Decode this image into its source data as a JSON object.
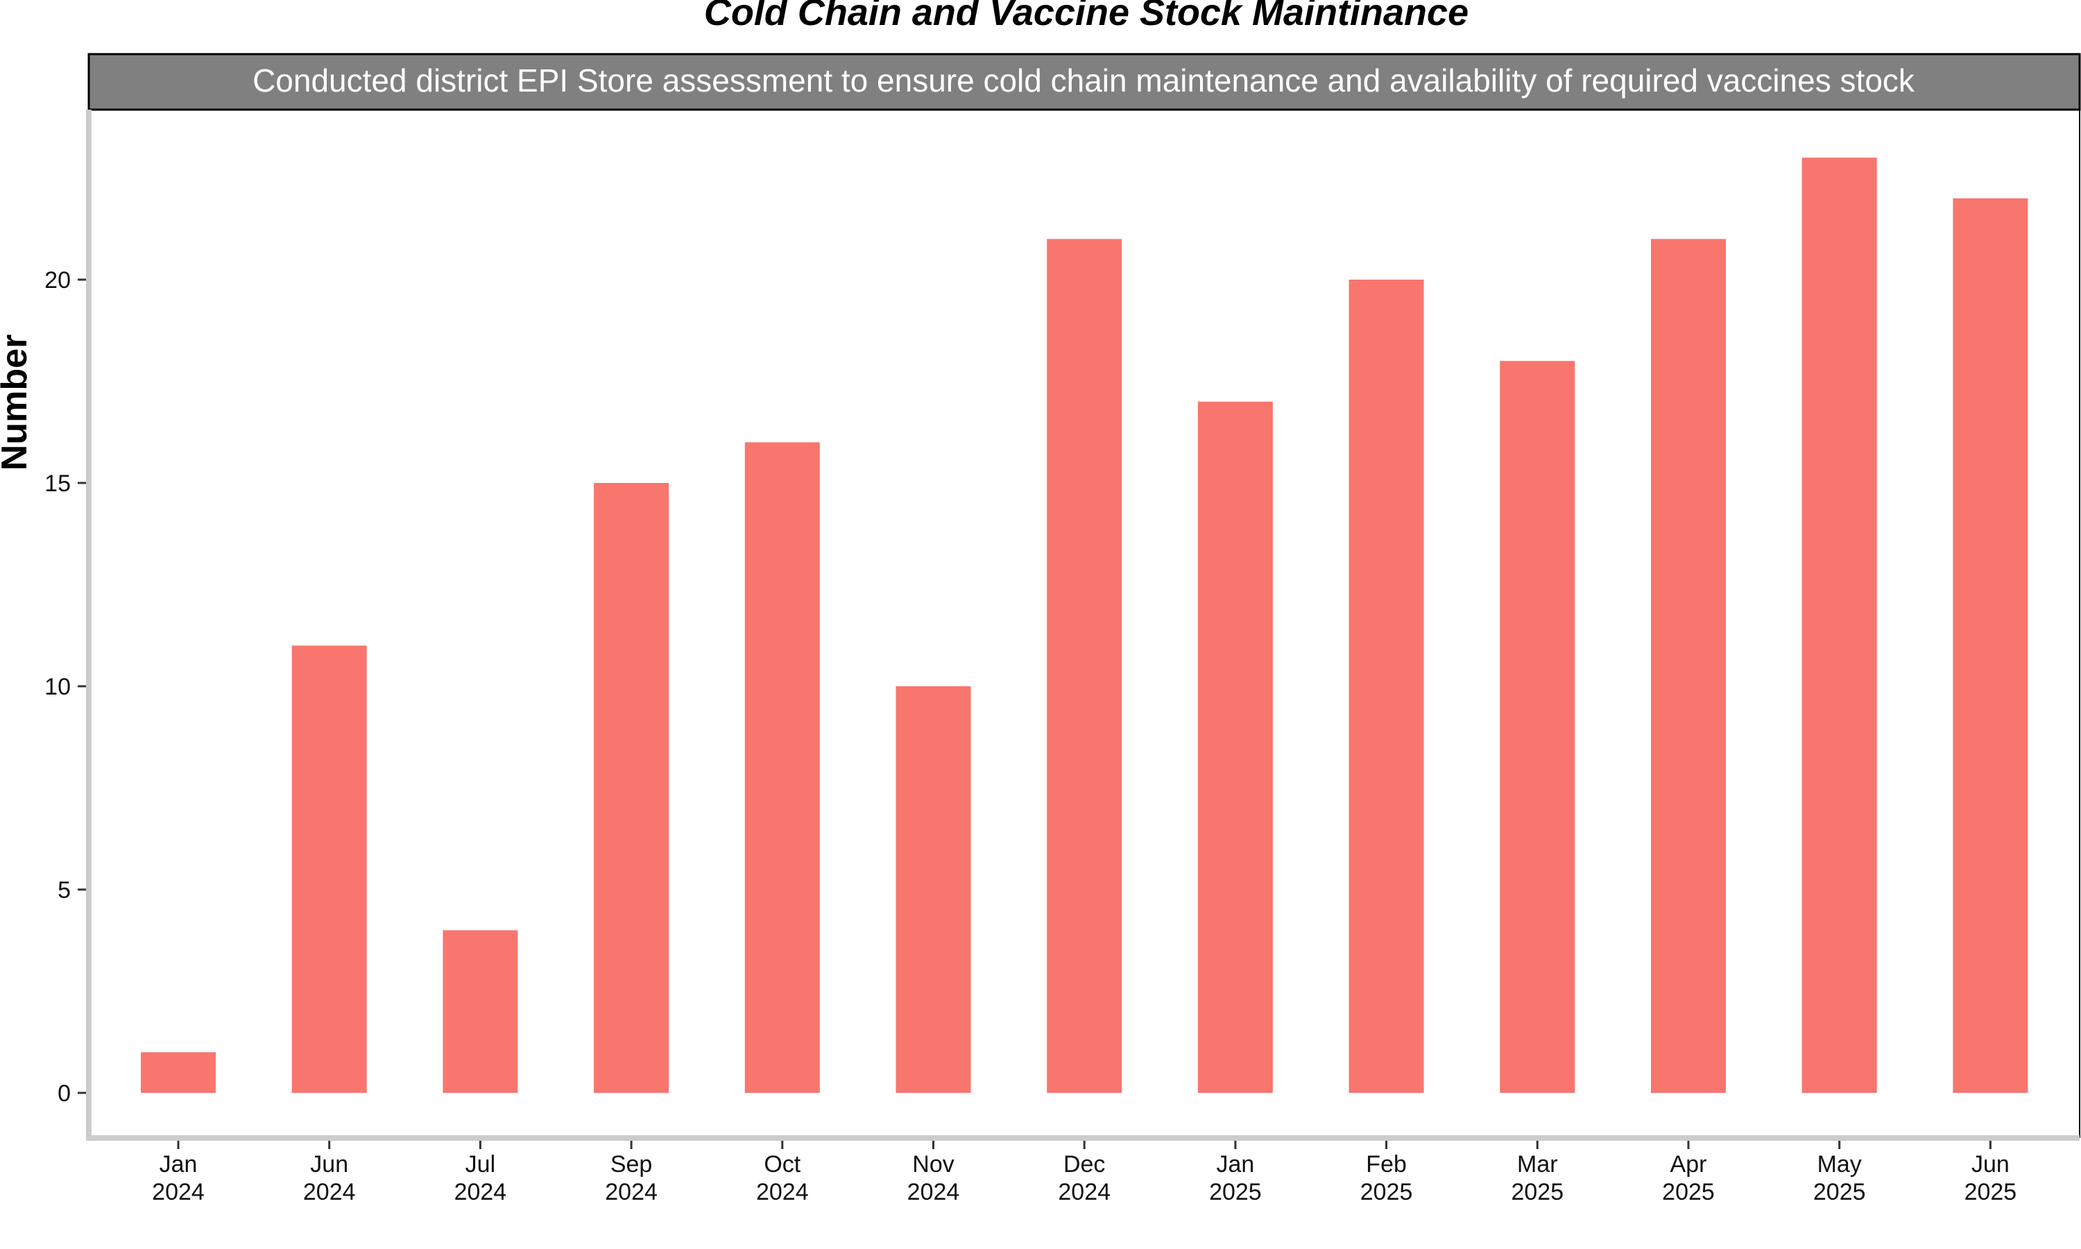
{
  "chart_data": {
    "type": "bar",
    "title": "Cold Chain and Vaccine Stock Maintinance",
    "facet_label": "Conducted district EPI Store assessment to ensure cold chain maintenance and availability of required vaccines stock",
    "ylabel": "Number",
    "xlabel": "",
    "categories": [
      [
        "Jan",
        "2024"
      ],
      [
        "Jun",
        "2024"
      ],
      [
        "Jul",
        "2024"
      ],
      [
        "Sep",
        "2024"
      ],
      [
        "Oct",
        "2024"
      ],
      [
        "Nov",
        "2024"
      ],
      [
        "Dec",
        "2024"
      ],
      [
        "Jan",
        "2025"
      ],
      [
        "Feb",
        "2025"
      ],
      [
        "Mar",
        "2025"
      ],
      [
        "Apr",
        "2025"
      ],
      [
        "May",
        "2025"
      ],
      [
        "Jun",
        "2025"
      ]
    ],
    "values": [
      1,
      11,
      4,
      15,
      16,
      10,
      21,
      17,
      20,
      18,
      21,
      23,
      22
    ],
    "y_ticks": [
      0,
      5,
      10,
      15,
      20
    ],
    "ylim": [
      0,
      23
    ],
    "grid": false,
    "legend": "none",
    "colors": {
      "bar": "#F8766D",
      "strip_fill": "#808080",
      "strip_text": "#ffffff",
      "axis_line": "#cccccc"
    }
  }
}
